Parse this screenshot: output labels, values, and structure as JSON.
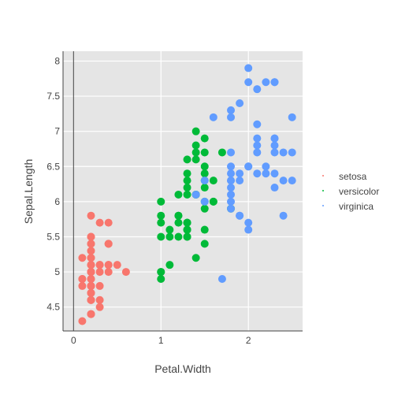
{
  "chart_data": {
    "type": "scatter",
    "title": "",
    "xlabel": "Petal.Width",
    "ylabel": "Sepal.Length",
    "xlim": [
      -0.12,
      2.62
    ],
    "ylim": [
      4.16,
      8.14
    ],
    "xticks": [
      0,
      1,
      2
    ],
    "yticks": [
      4.5,
      5,
      5.5,
      6,
      6.5,
      7,
      7.5,
      8
    ],
    "grid": true,
    "legend_position": "right",
    "series": [
      {
        "name": "setosa",
        "color": "#F8766D",
        "x": [
          0.2,
          0.2,
          0.2,
          0.2,
          0.2,
          0.4,
          0.3,
          0.2,
          0.2,
          0.1,
          0.2,
          0.2,
          0.1,
          0.1,
          0.2,
          0.4,
          0.4,
          0.3,
          0.3,
          0.3,
          0.2,
          0.4,
          0.2,
          0.5,
          0.2,
          0.2,
          0.4,
          0.2,
          0.2,
          0.2,
          0.2,
          0.4,
          0.1,
          0.2,
          0.2,
          0.2,
          0.2,
          0.1,
          0.2,
          0.2,
          0.3,
          0.3,
          0.2,
          0.6,
          0.4,
          0.3,
          0.2,
          0.2,
          0.2,
          0.2
        ],
        "y": [
          5.1,
          4.9,
          4.7,
          4.6,
          5.0,
          5.4,
          4.6,
          5.0,
          4.4,
          4.9,
          5.4,
          4.8,
          4.8,
          4.3,
          5.8,
          5.7,
          5.4,
          5.1,
          5.7,
          5.1,
          5.4,
          5.1,
          4.6,
          5.1,
          4.8,
          5.0,
          5.0,
          5.2,
          5.2,
          4.7,
          4.8,
          5.4,
          5.2,
          5.5,
          4.9,
          5.0,
          5.5,
          4.9,
          4.4,
          5.1,
          5.0,
          4.5,
          4.4,
          5.0,
          5.1,
          4.8,
          5.1,
          4.6,
          5.3,
          5.0
        ]
      },
      {
        "name": "versicolor",
        "color": "#00BA38",
        "x": [
          1.4,
          1.5,
          1.5,
          1.3,
          1.5,
          1.3,
          1.6,
          1.0,
          1.3,
          1.4,
          1.0,
          1.5,
          1.0,
          1.4,
          1.3,
          1.4,
          1.5,
          1.0,
          1.5,
          1.1,
          1.8,
          1.3,
          1.5,
          1.2,
          1.3,
          1.4,
          1.4,
          1.7,
          1.5,
          1.0,
          1.1,
          1.0,
          1.2,
          1.6,
          1.5,
          1.6,
          1.5,
          1.3,
          1.3,
          1.3,
          1.2,
          1.4,
          1.2,
          1.0,
          1.3,
          1.2,
          1.3,
          1.3,
          1.1,
          1.3
        ],
        "y": [
          7.0,
          6.4,
          6.9,
          5.5,
          6.5,
          5.7,
          6.3,
          4.9,
          6.6,
          5.2,
          5.0,
          5.9,
          6.0,
          6.1,
          5.6,
          6.7,
          5.6,
          5.8,
          6.2,
          5.6,
          5.9,
          6.1,
          6.3,
          6.1,
          6.4,
          6.6,
          6.8,
          6.7,
          6.0,
          5.7,
          5.5,
          5.5,
          5.8,
          6.0,
          5.4,
          6.0,
          6.7,
          6.3,
          5.6,
          5.5,
          5.5,
          6.1,
          5.8,
          5.0,
          5.6,
          5.7,
          5.7,
          6.2,
          5.1,
          5.7
        ]
      },
      {
        "name": "virginica",
        "color": "#619CFF",
        "x": [
          2.5,
          1.9,
          2.1,
          1.8,
          2.2,
          2.1,
          1.7,
          1.8,
          1.8,
          2.5,
          2.0,
          1.9,
          2.1,
          2.0,
          2.4,
          2.3,
          1.8,
          2.2,
          2.3,
          1.5,
          2.3,
          2.0,
          2.0,
          1.8,
          2.1,
          1.8,
          1.8,
          1.8,
          2.1,
          1.6,
          1.9,
          2.0,
          2.2,
          1.5,
          1.4,
          2.3,
          2.4,
          1.8,
          1.8,
          2.1,
          2.4,
          2.3,
          1.9,
          2.3,
          2.5,
          2.3,
          1.9,
          2.0,
          2.3,
          1.8
        ],
        "y": [
          6.3,
          5.8,
          7.1,
          6.3,
          6.5,
          7.6,
          4.9,
          7.3,
          6.7,
          7.2,
          6.5,
          6.4,
          6.8,
          5.7,
          5.8,
          6.4,
          6.5,
          7.7,
          7.7,
          6.0,
          6.9,
          5.6,
          7.7,
          6.3,
          6.7,
          7.2,
          6.2,
          6.1,
          6.4,
          7.2,
          7.4,
          7.9,
          6.4,
          6.3,
          6.1,
          7.7,
          6.3,
          6.4,
          6.0,
          6.9,
          6.7,
          6.9,
          5.8,
          6.8,
          6.7,
          6.7,
          6.3,
          6.5,
          6.2,
          5.9
        ]
      }
    ]
  }
}
